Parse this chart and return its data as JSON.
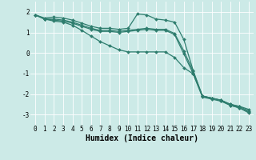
{
  "background_color": "#cceae7",
  "grid_color": "#ffffff",
  "line_color": "#2e7d6e",
  "xlabel": "Humidex (Indice chaleur)",
  "xlim": [
    -0.5,
    23.5
  ],
  "ylim": [
    -3.5,
    2.5
  ],
  "yticks": [
    -3,
    -2,
    -1,
    0,
    1,
    2
  ],
  "xticks": [
    0,
    1,
    2,
    3,
    4,
    5,
    6,
    7,
    8,
    9,
    10,
    11,
    12,
    13,
    14,
    15,
    16,
    17,
    18,
    19,
    20,
    21,
    22,
    23
  ],
  "series": [
    [
      1.85,
      1.7,
      1.75,
      1.7,
      1.6,
      1.45,
      1.3,
      1.2,
      1.2,
      1.15,
      1.2,
      1.9,
      1.85,
      1.65,
      1.6,
      1.5,
      0.65,
      -0.85,
      -2.1,
      -2.2,
      -2.3,
      -2.5,
      -2.6,
      -2.75
    ],
    [
      1.85,
      1.65,
      1.65,
      1.6,
      1.5,
      1.35,
      1.2,
      1.1,
      1.1,
      1.05,
      1.1,
      1.15,
      1.2,
      1.15,
      1.15,
      0.95,
      0.1,
      -0.9,
      -2.1,
      -2.2,
      -2.3,
      -2.5,
      -2.62,
      -2.82
    ],
    [
      1.85,
      1.65,
      1.6,
      1.55,
      1.45,
      1.3,
      1.15,
      1.05,
      1.05,
      1.0,
      1.05,
      1.1,
      1.15,
      1.1,
      1.1,
      0.9,
      -0.05,
      -1.0,
      -2.15,
      -2.25,
      -2.35,
      -2.55,
      -2.67,
      -2.87
    ],
    [
      1.85,
      1.65,
      1.55,
      1.5,
      1.35,
      1.1,
      0.82,
      0.55,
      0.35,
      0.15,
      0.05,
      0.05,
      0.05,
      0.05,
      0.05,
      -0.22,
      -0.72,
      -1.02,
      -2.1,
      -2.2,
      -2.32,
      -2.55,
      -2.68,
      -2.92
    ]
  ],
  "marker": "D",
  "markersize": 2.0,
  "linewidth": 0.9,
  "xlabel_fontsize": 7,
  "tick_fontsize": 5.5
}
